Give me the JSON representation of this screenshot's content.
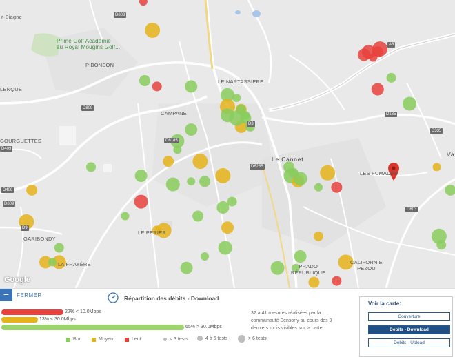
{
  "map": {
    "places": [
      {
        "text": "r-Siagne",
        "style": "normal"
      },
      {
        "text": "Prime Golf Académie\nau Royal Mougins Golf...",
        "style": "green"
      },
      {
        "text": "PIBONSON",
        "style": "normal"
      },
      {
        "text": "LENQUE",
        "style": "normal"
      },
      {
        "text": "LE NARTASSIÈRE",
        "style": "normal"
      },
      {
        "text": "CAMPANE",
        "style": "normal"
      },
      {
        "text": "GOURGUETTES",
        "style": "normal"
      },
      {
        "text": "Le Cannet",
        "style": "big"
      },
      {
        "text": "LES FUMADES",
        "style": "normal"
      },
      {
        "text": "GARIBONDY",
        "style": "normal"
      },
      {
        "text": "LE PERIER",
        "style": "normal"
      },
      {
        "text": "LA FRAYÈRE",
        "style": "normal"
      },
      {
        "text": "PRADO\nRÉPUBLIQUE",
        "style": "normal"
      },
      {
        "text": "CALIFORNIE\nPEZOU",
        "style": "normal"
      },
      {
        "text": "Va",
        "style": "normal"
      }
    ],
    "shields": [
      "D809",
      "D409",
      "D9",
      "D6285",
      "D6185",
      "D135",
      "D335",
      "D803",
      "D3",
      "A8",
      "D803",
      "D809",
      "D409"
    ],
    "attribution": "Google",
    "points": [
      {
        "lng": 0.315,
        "lat": 0.005,
        "cat": "lent"
      },
      {
        "lng": 0.318,
        "lat": 0.28,
        "cat": "bon"
      },
      {
        "lng": 0.335,
        "lat": 0.105,
        "cat": "moyen"
      },
      {
        "lng": 0.345,
        "lat": 0.3,
        "cat": "lent"
      },
      {
        "lng": 0.42,
        "lat": 0.3,
        "cat": "bon"
      },
      {
        "lng": 0.5,
        "lat": 0.33,
        "cat": "bon"
      },
      {
        "lng": 0.52,
        "lat": 0.34,
        "cat": "bon"
      },
      {
        "lng": 0.53,
        "lat": 0.38,
        "cat": "moyen"
      },
      {
        "lng": 0.5,
        "lat": 0.37,
        "cat": "moyen"
      },
      {
        "lng": 0.53,
        "lat": 0.38,
        "cat": "bon"
      },
      {
        "lng": 0.53,
        "lat": 0.44,
        "cat": "moyen"
      },
      {
        "lng": 0.5,
        "lat": 0.4,
        "cat": "bon"
      },
      {
        "lng": 0.54,
        "lat": 0.4,
        "cat": "bon"
      },
      {
        "lng": 0.54,
        "lat": 0.41,
        "cat": "bon"
      },
      {
        "lng": 0.52,
        "lat": 0.41,
        "cat": "bon"
      },
      {
        "lng": 0.55,
        "lat": 0.44,
        "cat": "bon"
      },
      {
        "lng": 0.42,
        "lat": 0.45,
        "cat": "bon"
      },
      {
        "lng": 0.39,
        "lat": 0.49,
        "cat": "bon"
      },
      {
        "lng": 0.39,
        "lat": 0.52,
        "cat": "bon"
      },
      {
        "lng": 0.37,
        "lat": 0.56,
        "cat": "moyen"
      },
      {
        "lng": 0.44,
        "lat": 0.56,
        "cat": "moyen"
      },
      {
        "lng": 0.2,
        "lat": 0.58,
        "cat": "bon"
      },
      {
        "lng": 0.31,
        "lat": 0.61,
        "cat": "bon"
      },
      {
        "lng": 0.38,
        "lat": 0.64,
        "cat": "bon"
      },
      {
        "lng": 0.42,
        "lat": 0.63,
        "cat": "bon"
      },
      {
        "lng": 0.45,
        "lat": 0.63,
        "cat": "bon"
      },
      {
        "lng": 0.49,
        "lat": 0.61,
        "cat": "moyen"
      },
      {
        "lng": 0.51,
        "lat": 0.7,
        "cat": "bon"
      },
      {
        "lng": 0.49,
        "lat": 0.72,
        "cat": "bon"
      },
      {
        "lng": 0.31,
        "lat": 0.7,
        "cat": "lent"
      },
      {
        "lng": 0.275,
        "lat": 0.75,
        "cat": "bon"
      },
      {
        "lng": 0.435,
        "lat": 0.75,
        "cat": "bon"
      },
      {
        "lng": 0.36,
        "lat": 0.8,
        "cat": "moyen"
      },
      {
        "lng": 0.345,
        "lat": 0.8,
        "cat": "moyen"
      },
      {
        "lng": 0.5,
        "lat": 0.79,
        "cat": "moyen"
      },
      {
        "lng": 0.495,
        "lat": 0.86,
        "cat": "bon"
      },
      {
        "lng": 0.45,
        "lat": 0.89,
        "cat": "bon"
      },
      {
        "lng": 0.07,
        "lat": 0.66,
        "cat": "moyen"
      },
      {
        "lng": 0.058,
        "lat": 0.77,
        "cat": "moyen"
      },
      {
        "lng": 0.13,
        "lat": 0.86,
        "cat": "bon"
      },
      {
        "lng": 0.1,
        "lat": 0.91,
        "cat": "moyen"
      },
      {
        "lng": 0.13,
        "lat": 0.91,
        "cat": "moyen"
      },
      {
        "lng": 0.115,
        "lat": 0.91,
        "cat": "bon"
      },
      {
        "lng": 0.635,
        "lat": 0.58,
        "cat": "bon"
      },
      {
        "lng": 0.64,
        "lat": 0.61,
        "cat": "bon"
      },
      {
        "lng": 0.645,
        "lat": 0.6,
        "cat": "bon"
      },
      {
        "lng": 0.655,
        "lat": 0.63,
        "cat": "moyen"
      },
      {
        "lng": 0.66,
        "lat": 0.62,
        "cat": "bon"
      },
      {
        "lng": 0.7,
        "lat": 0.65,
        "cat": "bon"
      },
      {
        "lng": 0.74,
        "lat": 0.65,
        "cat": "lent"
      },
      {
        "lng": 0.72,
        "lat": 0.6,
        "cat": "moyen"
      },
      {
        "lng": 0.7,
        "lat": 0.82,
        "cat": "moyen"
      },
      {
        "lng": 0.66,
        "lat": 0.89,
        "cat": "bon"
      },
      {
        "lng": 0.61,
        "lat": 0.93,
        "cat": "bon"
      },
      {
        "lng": 0.65,
        "lat": 0.93,
        "cat": "bon"
      },
      {
        "lng": 0.69,
        "lat": 0.98,
        "cat": "moyen"
      },
      {
        "lng": 0.76,
        "lat": 0.91,
        "cat": "moyen"
      },
      {
        "lng": 0.74,
        "lat": 0.975,
        "cat": "lent"
      },
      {
        "lng": 0.8,
        "lat": 0.19,
        "cat": "lent"
      },
      {
        "lng": 0.81,
        "lat": 0.18,
        "cat": "lent"
      },
      {
        "lng": 0.82,
        "lat": 0.2,
        "cat": "lent"
      },
      {
        "lng": 0.83,
        "lat": 0.18,
        "cat": "lent"
      },
      {
        "lng": 0.835,
        "lat": 0.17,
        "cat": "lent"
      },
      {
        "lng": 0.86,
        "lat": 0.27,
        "cat": "bon"
      },
      {
        "lng": 0.83,
        "lat": 0.31,
        "cat": "lent"
      },
      {
        "lng": 0.9,
        "lat": 0.36,
        "cat": "bon"
      },
      {
        "lng": 0.96,
        "lat": 0.58,
        "cat": "moyen"
      },
      {
        "lng": 0.99,
        "lat": 0.66,
        "cat": "bon"
      },
      {
        "lng": 0.965,
        "lat": 0.82,
        "cat": "bon"
      },
      {
        "lng": 0.97,
        "lat": 0.85,
        "cat": "bon"
      },
      {
        "lng": 0.41,
        "lat": 0.93,
        "cat": "bon"
      }
    ],
    "pin": {
      "lng": 0.865,
      "lat": 0.58,
      "color": "#d9362b"
    }
  },
  "panel": {
    "close_label": "FERMER",
    "title": "Répartition des débits - Download",
    "bars": [
      {
        "label": "22% < 10.0Mbps",
        "percent": 22,
        "color": "#e8423d"
      },
      {
        "label": "13% < 30.0Mbps",
        "percent": 13,
        "color": "#e5b31b"
      },
      {
        "label": "65% > 30.0Mbps",
        "percent": 65,
        "color": "#9dd36d"
      }
    ],
    "description": "32 à 41 mesures réalisées par la communauté Sensorly au cours des 9 derniers mois visibles sur la carte.",
    "legend_colors": [
      {
        "label": "Bon",
        "color": "#88cd5d"
      },
      {
        "label": "Moyen",
        "color": "#e5b31b"
      },
      {
        "label": "Lent",
        "color": "#e8423d"
      }
    ],
    "legend_sizes": [
      "< 3 tests",
      "4 à 6 tests",
      "> 6 tests"
    ],
    "voir": {
      "title": "Voir la carte:",
      "buttons": [
        {
          "label": "Couverture",
          "active": false
        },
        {
          "label": "Debits - Download",
          "active": true
        },
        {
          "label": "Debits - Upload",
          "active": false
        }
      ]
    }
  },
  "colors": {
    "bon": "#88cd5d",
    "moyen": "#e5b31b",
    "lent": "#e8423d",
    "accent": "#3a73b7"
  }
}
